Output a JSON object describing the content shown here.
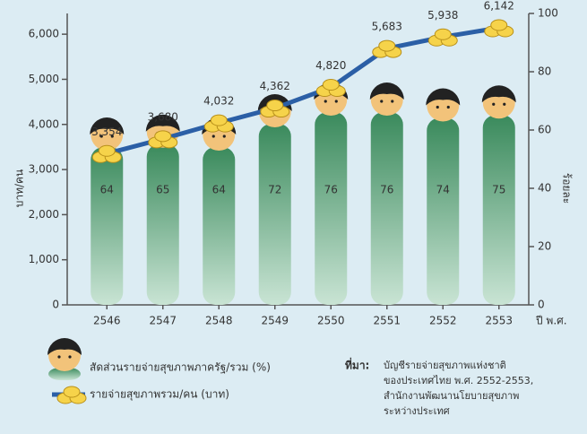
{
  "chart_data": {
    "type": "pictograph-line",
    "categories": [
      "2546",
      "2547",
      "2548",
      "2549",
      "2550",
      "2551",
      "2552",
      "2553"
    ],
    "x_label": "ปี พ.ศ.",
    "y_label": "บาท/คน",
    "y2_label": "ร้อยละ",
    "ylim": [
      0,
      6460
    ],
    "yticks": [
      0,
      {
        "value": 1000,
        "label": "1,000"
      },
      {
        "value": 2000,
        "label": "2,000"
      },
      {
        "value": 3000,
        "label": "3,000"
      },
      {
        "value": 4000,
        "label": "4,000"
      },
      {
        "value": 5000,
        "label": "5,000"
      },
      {
        "value": 6000,
        "label": "6,000"
      }
    ],
    "y2lim": [
      0,
      100
    ],
    "y2ticks": [
      0,
      20,
      40,
      60,
      80,
      100
    ],
    "grid": false,
    "series": [
      {
        "name": "สัดส่วนรายจ่ายสุขภาพภาครัฐ/รวม (%)",
        "color": "#3f8a5e",
        "axis": "y2",
        "kind": "people",
        "values": [
          64,
          65,
          64,
          72,
          76,
          76,
          74,
          75
        ]
      },
      {
        "name": "รายจ่ายสุขภาพรวม/คน (บาท)",
        "color": "#2b5fa6",
        "kind": "line",
        "values": [
          3354,
          3680,
          4032,
          4362,
          4820,
          5683,
          5938,
          6142
        ],
        "value_labels": [
          "3,354",
          "3,680",
          "4,032",
          "4,362",
          "4,820",
          "5,683",
          "5,938",
          "6,142"
        ]
      }
    ],
    "source": {
      "label": "ที่มา:",
      "lines": [
        "บัญชีรายจ่ายสุขภาพแห่งชาติ",
        "ของประเทศไทย พ.ศ. 2552-2553,",
        "สำนักงานพัฒนานโยบายสุขภาพ",
        "ระหว่างประเทศ"
      ]
    }
  }
}
